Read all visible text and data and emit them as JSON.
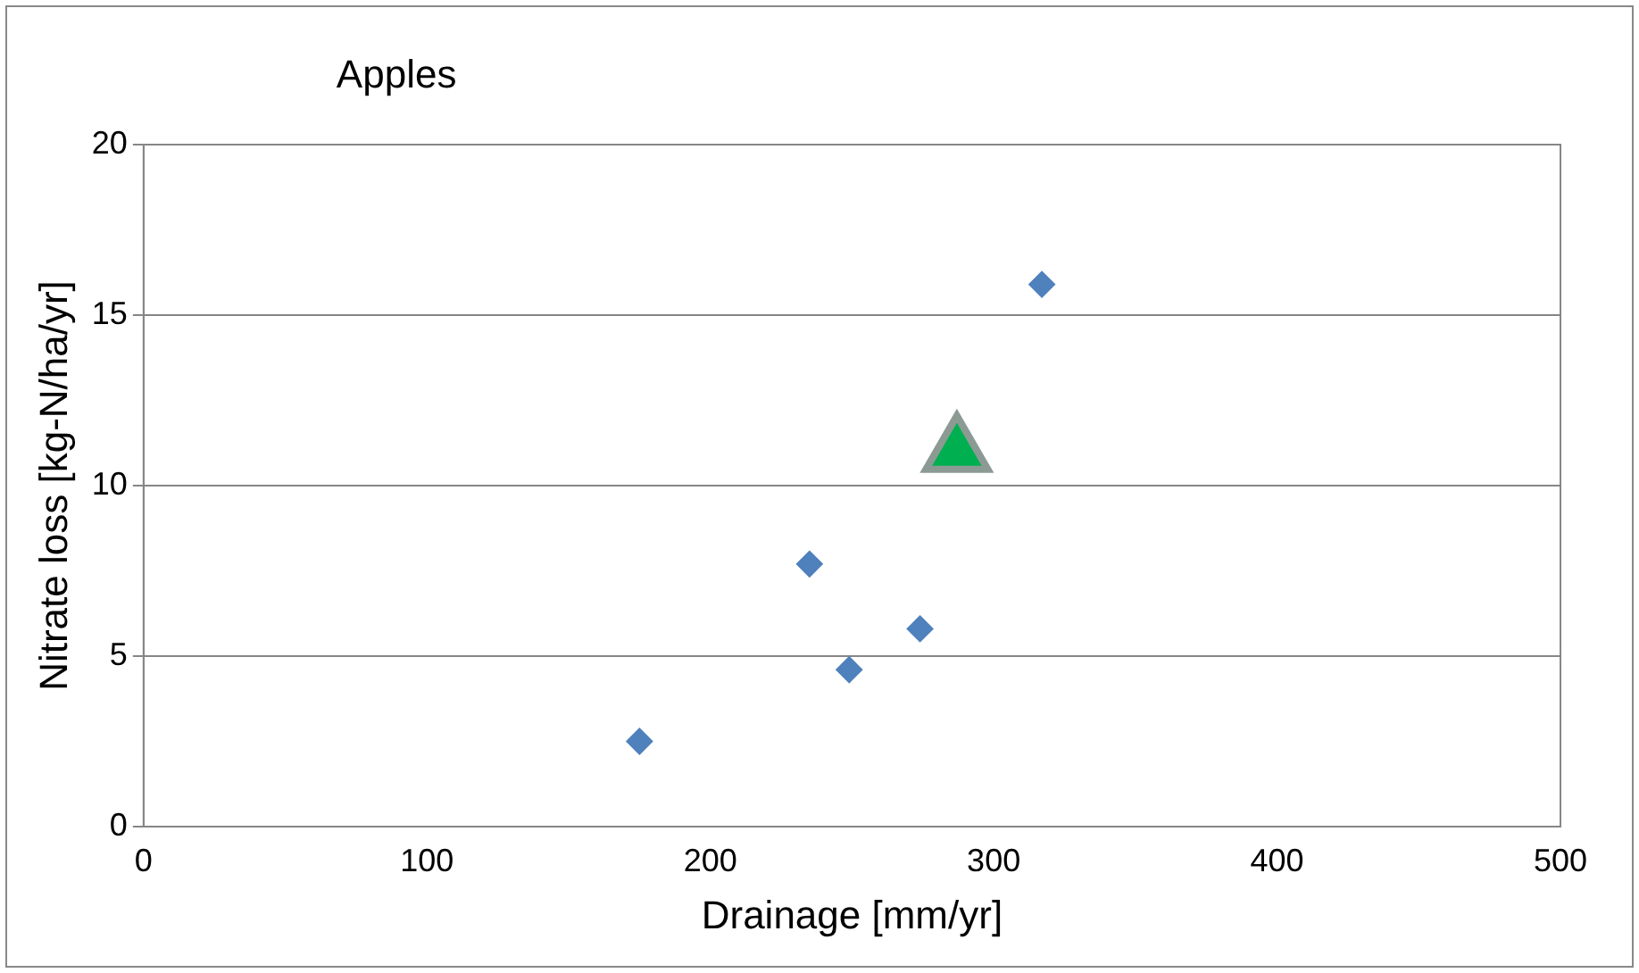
{
  "chart_data": {
    "type": "scatter",
    "title": "Apples",
    "xlabel": "Drainage [mm/yr]",
    "ylabel": "Nitrate loss [kg-N/ha/yr]",
    "xlim": [
      0,
      500
    ],
    "xticks": [
      0,
      100,
      200,
      300,
      400,
      500
    ],
    "ylim": [
      0,
      20
    ],
    "yticks": [
      0,
      5,
      10,
      15,
      20
    ],
    "grid": "y",
    "series": [
      {
        "color": "#4f81bd",
        "marker": "diamond",
        "x": [
          175,
          235,
          249,
          274,
          317
        ],
        "values": [
          2.5,
          7.7,
          4.6,
          5.8,
          15.9
        ]
      },
      {
        "color": "#00b050",
        "marker": "triangle",
        "x": [
          287
        ],
        "values": [
          11
        ]
      }
    ]
  }
}
